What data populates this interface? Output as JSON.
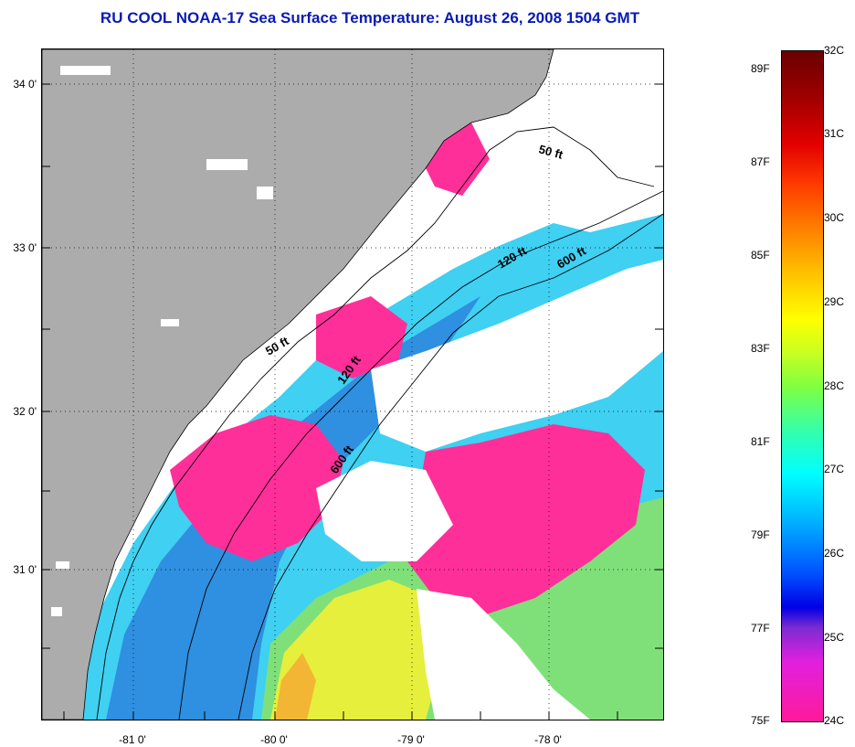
{
  "title": "RU COOL  NOAA-17  Sea Surface Temperature:  August 26, 2008 1504 GMT",
  "map": {
    "x_tick_labels": [
      "-81 0'",
      "-80 0'",
      "-79 0'",
      "-78 0'"
    ],
    "y_tick_labels": [
      "34 0'",
      "33 0'",
      "32 0'",
      "31 0'"
    ],
    "contour_labels": [
      "50 ft",
      "120 ft",
      "600 ft",
      "50 ft",
      "120 ft",
      "600 ft"
    ],
    "colors": {
      "land": "#acacac",
      "cloud": "#ffffff",
      "warm_pink": "#ff2f9a",
      "cool_blue": "#2f8fe0",
      "cyan": "#3fd0f2",
      "green": "#7fe07a",
      "yellow": "#e6ef3b"
    }
  },
  "colorbar": {
    "celsius_labels": [
      "32C",
      "31C",
      "30C",
      "29C",
      "28C",
      "27C",
      "26C",
      "25C",
      "24C"
    ],
    "fahrenheit_labels": [
      "89F",
      "87F",
      "85F",
      "83F",
      "81F",
      "79F",
      "77F",
      "75F"
    ],
    "range_celsius": [
      24,
      32
    ],
    "range_fahrenheit": [
      75,
      89
    ]
  }
}
